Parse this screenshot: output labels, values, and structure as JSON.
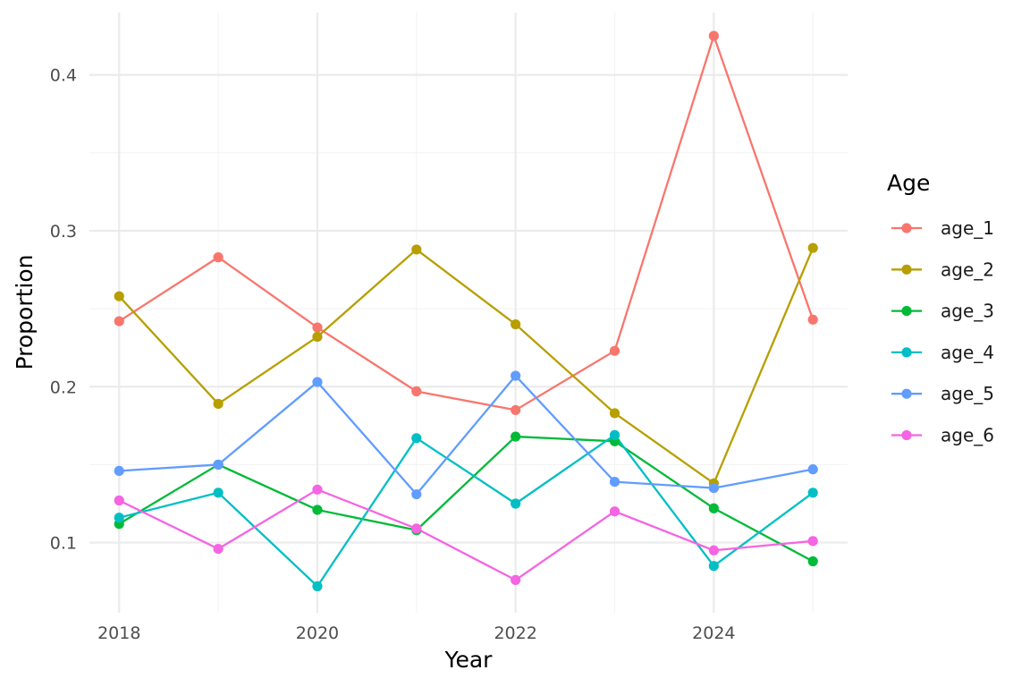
{
  "chart_data": {
    "type": "line",
    "xlabel": "Year",
    "ylabel": "Proportion",
    "x": [
      2018,
      2019,
      2020,
      2021,
      2022,
      2023,
      2024,
      2025
    ],
    "xlim": [
      2017.7,
      2025.35
    ],
    "ylim": [
      0.055,
      0.44
    ],
    "x_ticks": [
      2018,
      2020,
      2022,
      2024
    ],
    "x_tick_labels": [
      "2018",
      "2020",
      "2022",
      "2024"
    ],
    "y_ticks": [
      0.1,
      0.2,
      0.3,
      0.4
    ],
    "y_tick_labels": [
      "0.1",
      "0.2",
      "0.3",
      "0.4"
    ],
    "grid": true,
    "legend": {
      "title": "Age",
      "position": "right"
    },
    "series": [
      {
        "name": "age_1",
        "color": "#F8766D",
        "values": [
          0.242,
          0.283,
          0.238,
          0.197,
          0.185,
          0.223,
          0.425,
          0.243
        ]
      },
      {
        "name": "age_2",
        "color": "#B79F00",
        "values": [
          0.258,
          0.189,
          0.232,
          0.288,
          0.24,
          0.183,
          0.138,
          0.289
        ]
      },
      {
        "name": "age_3",
        "color": "#00BA38",
        "values": [
          0.112,
          0.15,
          0.121,
          0.108,
          0.168,
          0.165,
          0.122,
          0.088
        ]
      },
      {
        "name": "age_4",
        "color": "#00BFC4",
        "values": [
          0.116,
          0.132,
          0.072,
          0.167,
          0.125,
          0.169,
          0.085,
          0.132
        ]
      },
      {
        "name": "age_5",
        "color": "#619CFF",
        "values": [
          0.146,
          0.15,
          0.203,
          0.131,
          0.207,
          0.139,
          0.135,
          0.147
        ]
      },
      {
        "name": "age_6",
        "color": "#F564E3",
        "values": [
          0.127,
          0.096,
          0.134,
          0.109,
          0.076,
          0.12,
          0.095,
          0.101
        ]
      }
    ]
  }
}
